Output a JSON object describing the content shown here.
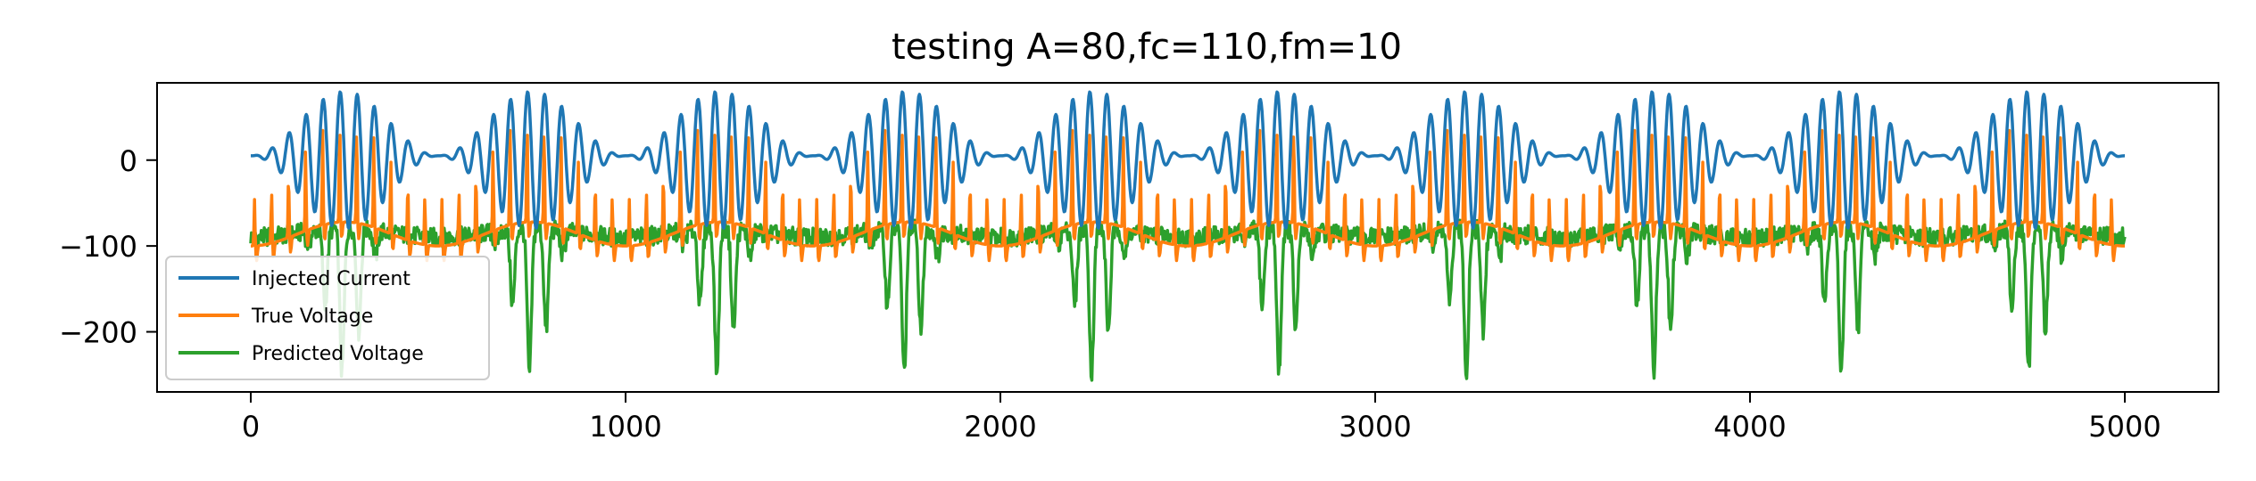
{
  "chart_data": {
    "type": "line",
    "title": "testing A=80,fc=110,fm=10",
    "xlabel": "",
    "ylabel": "",
    "xlim": [
      -250,
      5250
    ],
    "ylim": [
      -270,
      90
    ],
    "xticks": [
      0,
      1000,
      2000,
      3000,
      4000,
      5000
    ],
    "xtick_labels": [
      "0",
      "1000",
      "2000",
      "3000",
      "4000",
      "5000"
    ],
    "yticks": [
      0,
      -100,
      -200
    ],
    "ytick_labels": [
      "0",
      "−100",
      "−200"
    ],
    "grid": false,
    "legend_position": "lower-left",
    "x": [
      0,
      5000
    ],
    "series": [
      {
        "name": "Injected Current",
        "color": "#1f77b4",
        "description": "amplitude-modulated sinusoid: carrier ~110 cycles, envelope ~10 cycles, peaks ~75, troughs ~-75, baseline ~0"
      },
      {
        "name": "True Voltage",
        "color": "#ff7f0e",
        "description": "spiking trace: resting ~-70 to -100, spikes up to ~45"
      },
      {
        "name": "Predicted Voltage",
        "color": "#2ca02c",
        "description": "noisy trace: ~-70 to -100 baseline with deep dips to ~-250 near envelope peaks"
      }
    ]
  }
}
